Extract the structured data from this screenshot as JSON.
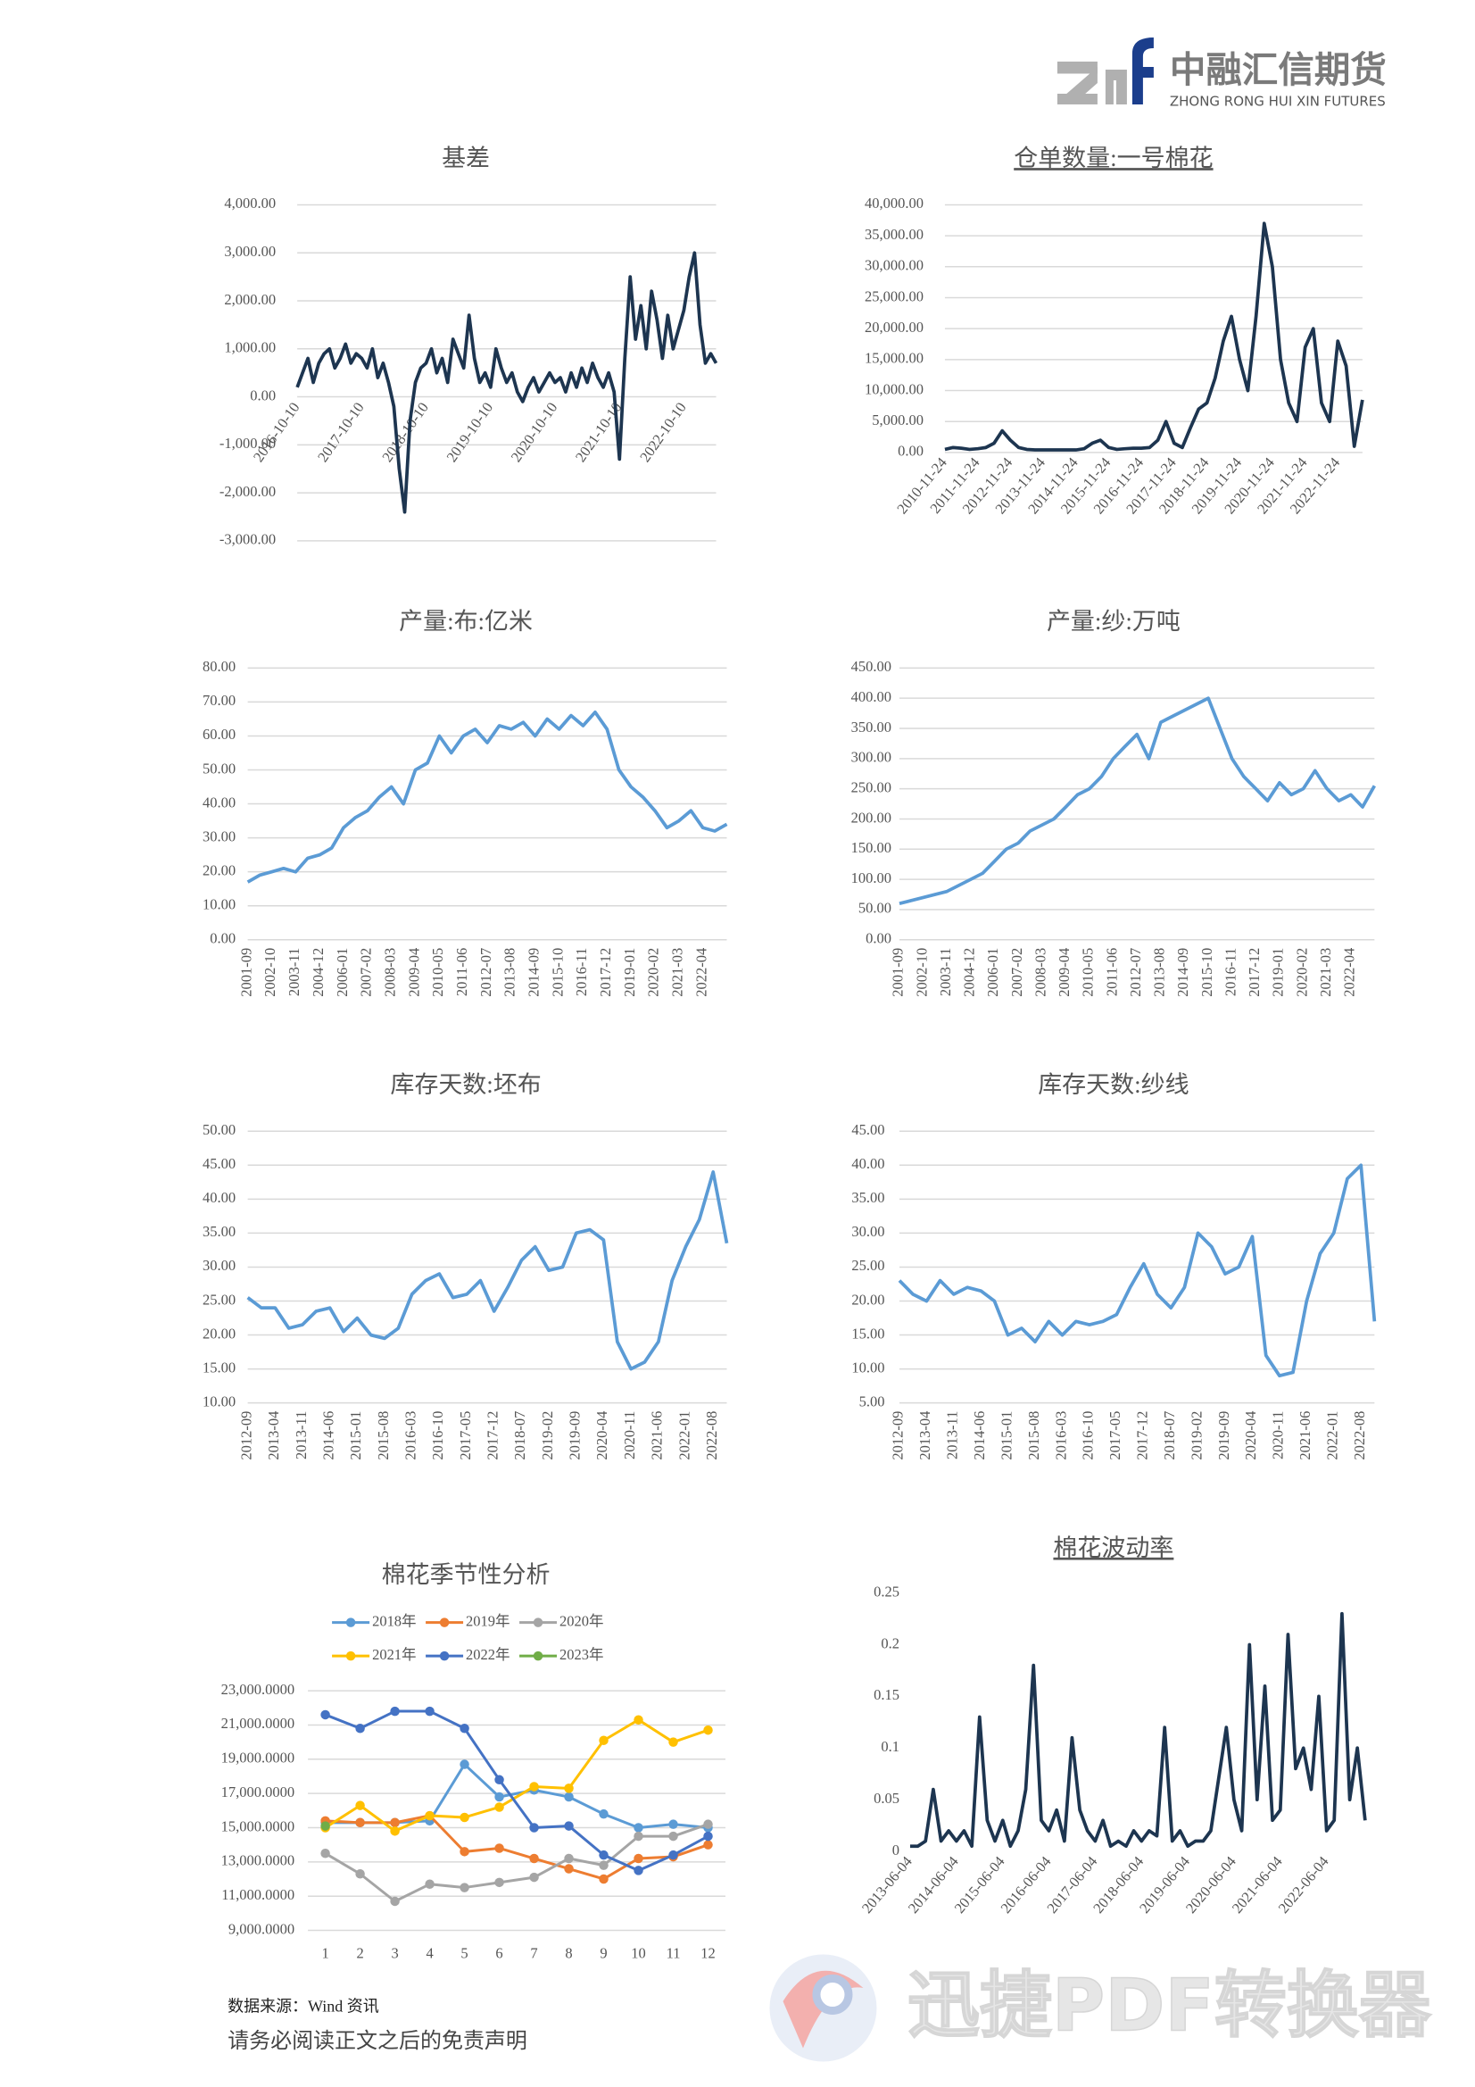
{
  "header": {
    "company": "中融汇信期货",
    "company_en": "ZHONG RONG HUI XIN FUTURES"
  },
  "footer": {
    "source": "数据来源：Wind 资讯",
    "disclaimer": "请务必阅读正文之后的免责声明",
    "watermark": "迅捷PDF转换器"
  },
  "chart_data": [
    {
      "type": "line",
      "title": "基差",
      "color": "#1d3550",
      "grid": true,
      "categories": [
        "2016-10-10",
        null,
        null,
        null,
        null,
        null,
        null,
        null,
        null,
        null,
        null,
        null,
        "2017-10-10",
        null,
        null,
        null,
        null,
        null,
        null,
        null,
        null,
        null,
        null,
        null,
        "2018-10-10",
        null,
        null,
        null,
        null,
        null,
        null,
        null,
        null,
        null,
        null,
        null,
        "2019-10-10",
        null,
        null,
        null,
        null,
        null,
        null,
        null,
        null,
        null,
        null,
        null,
        "2020-10-10",
        null,
        null,
        null,
        null,
        null,
        null,
        null,
        null,
        null,
        null,
        null,
        "2021-10-10",
        null,
        null,
        null,
        null,
        null,
        null,
        null,
        null,
        null,
        null,
        null,
        "2022-10-10",
        null,
        null,
        null,
        null,
        null,
        null
      ],
      "values": [
        200,
        500,
        800,
        300,
        700,
        900,
        1000,
        600,
        800,
        1100,
        700,
        900,
        800,
        600,
        1000,
        400,
        700,
        300,
        -200,
        -1500,
        -2400,
        -500,
        300,
        600,
        700,
        1000,
        500,
        800,
        300,
        1200,
        900,
        600,
        1700,
        800,
        300,
        500,
        200,
        1000,
        600,
        300,
        500,
        100,
        -100,
        200,
        400,
        100,
        300,
        500,
        300,
        400,
        100,
        500,
        200,
        600,
        300,
        700,
        400,
        200,
        500,
        100,
        -1300,
        800,
        2500,
        1200,
        1900,
        1000,
        2200,
        1600,
        800,
        1700,
        1000,
        1400,
        1800,
        2500,
        3000,
        1500,
        700,
        900,
        700
      ],
      "ylim": [
        -3000,
        4000
      ],
      "yticks": [
        {
          "value": -3000,
          "label": "-3,000.00"
        },
        {
          "value": -2000,
          "label": "-2,000.00"
        },
        {
          "value": -1000,
          "label": "-1,000.00"
        },
        {
          "value": 0,
          "label": "0.00"
        },
        {
          "value": 1000,
          "label": "1,000.00"
        },
        {
          "value": 2000,
          "label": "2,000.00"
        },
        {
          "value": 3000,
          "label": "3,000.00"
        },
        {
          "value": 4000,
          "label": "4,000.00"
        }
      ]
    },
    {
      "type": "line",
      "title": "仓单数量:一号棉花",
      "color": "#1d3550",
      "grid": true,
      "categories": [
        "2010-11-24",
        null,
        null,
        null,
        "2011-11-24",
        null,
        null,
        null,
        "2012-11-24",
        null,
        null,
        null,
        "2013-11-24",
        null,
        null,
        null,
        "2014-11-24",
        null,
        null,
        null,
        "2015-11-24",
        null,
        null,
        null,
        "2016-11-24",
        null,
        null,
        null,
        "2017-11-24",
        null,
        null,
        null,
        "2018-11-24",
        null,
        null,
        null,
        "2019-11-24",
        null,
        null,
        null,
        "2020-11-24",
        null,
        null,
        null,
        "2021-11-24",
        null,
        null,
        null,
        "2022-11-24",
        null,
        null,
        null
      ],
      "values": [
        500,
        800,
        700,
        500,
        600,
        800,
        1500,
        3500,
        2000,
        800,
        500,
        400,
        400,
        400,
        400,
        400,
        400,
        600,
        1500,
        2000,
        800,
        500,
        600,
        700,
        700,
        800,
        2000,
        5000,
        1500,
        800,
        4000,
        7000,
        8000,
        12000,
        18000,
        22000,
        15000,
        10000,
        22000,
        37000,
        30000,
        15000,
        8000,
        5000,
        17000,
        20000,
        8000,
        5000,
        18000,
        14000,
        1000,
        8500
      ],
      "ylim": [
        0,
        40000
      ],
      "yticks": [
        {
          "value": 0,
          "label": "0.00"
        },
        {
          "value": 5000,
          "label": "5,000.00"
        },
        {
          "value": 10000,
          "label": "10,000.00"
        },
        {
          "value": 15000,
          "label": "15,000.00"
        },
        {
          "value": 20000,
          "label": "20,000.00"
        },
        {
          "value": 25000,
          "label": "25,000.00"
        },
        {
          "value": 30000,
          "label": "30,000.00"
        },
        {
          "value": 35000,
          "label": "35,000.00"
        },
        {
          "value": 40000,
          "label": "40,000.00"
        }
      ]
    },
    {
      "type": "line",
      "title": "产量:布:亿米",
      "color": "#5b9bd5",
      "grid": true,
      "categories": [
        "2001-09",
        null,
        "2002-10",
        null,
        "2003-11",
        null,
        "2004-12",
        null,
        "2006-01",
        null,
        "2007-02",
        null,
        "2008-03",
        null,
        "2009-04",
        null,
        "2010-05",
        null,
        "2011-06",
        null,
        "2012-07",
        null,
        "2013-08",
        null,
        "2014-09",
        null,
        "2015-10",
        null,
        "2016-11",
        null,
        "2017-12",
        null,
        "2019-01",
        null,
        "2020-02",
        null,
        "2021-03",
        null,
        "2022-04",
        null,
        null
      ],
      "values": [
        17,
        19,
        20,
        21,
        20,
        24,
        25,
        27,
        33,
        36,
        38,
        42,
        45,
        40,
        50,
        52,
        60,
        55,
        60,
        62,
        58,
        63,
        62,
        64,
        60,
        65,
        62,
        66,
        63,
        67,
        62,
        50,
        45,
        42,
        38,
        33,
        35,
        38,
        33,
        32,
        34
      ],
      "ylim": [
        0,
        80
      ],
      "yticks": [
        {
          "value": 0,
          "label": "0.00"
        },
        {
          "value": 10,
          "label": "10.00"
        },
        {
          "value": 20,
          "label": "20.00"
        },
        {
          "value": 30,
          "label": "30.00"
        },
        {
          "value": 40,
          "label": "40.00"
        },
        {
          "value": 50,
          "label": "50.00"
        },
        {
          "value": 60,
          "label": "60.00"
        },
        {
          "value": 70,
          "label": "70.00"
        },
        {
          "value": 80,
          "label": "80.00"
        }
      ]
    },
    {
      "type": "line",
      "title": "产量:纱:万吨",
      "color": "#5b9bd5",
      "grid": true,
      "categories": [
        "2001-09",
        null,
        "2002-10",
        null,
        "2003-11",
        null,
        "2004-12",
        null,
        "2006-01",
        null,
        "2007-02",
        null,
        "2008-03",
        null,
        "2009-04",
        null,
        "2010-05",
        null,
        "2011-06",
        null,
        "2012-07",
        null,
        "2013-08",
        null,
        "2014-09",
        null,
        "2015-10",
        null,
        "2016-11",
        null,
        "2017-12",
        null,
        "2019-01",
        null,
        "2020-02",
        null,
        "2021-03",
        null,
        "2022-04",
        null,
        null
      ],
      "values": [
        60,
        65,
        70,
        75,
        80,
        90,
        100,
        110,
        130,
        150,
        160,
        180,
        190,
        200,
        220,
        240,
        250,
        270,
        300,
        320,
        340,
        300,
        360,
        370,
        380,
        390,
        400,
        350,
        300,
        270,
        250,
        230,
        260,
        240,
        250,
        280,
        250,
        230,
        240,
        220,
        255
      ],
      "ylim": [
        0,
        450
      ],
      "yticks": [
        {
          "value": 0,
          "label": "0.00"
        },
        {
          "value": 50,
          "label": "50.00"
        },
        {
          "value": 100,
          "label": "100.00"
        },
        {
          "value": 150,
          "label": "150.00"
        },
        {
          "value": 200,
          "label": "200.00"
        },
        {
          "value": 250,
          "label": "250.00"
        },
        {
          "value": 300,
          "label": "300.00"
        },
        {
          "value": 350,
          "label": "350.00"
        },
        {
          "value": 400,
          "label": "400.00"
        },
        {
          "value": 450,
          "label": "450.00"
        }
      ]
    },
    {
      "type": "line",
      "title": "库存天数:坯布",
      "color": "#5b9bd5",
      "grid": true,
      "categories": [
        "2012-09",
        null,
        "2013-04",
        null,
        "2013-11",
        null,
        "2014-06",
        null,
        "2015-01",
        null,
        "2015-08",
        null,
        "2016-03",
        null,
        "2016-10",
        null,
        "2017-05",
        null,
        "2017-12",
        null,
        "2018-07",
        null,
        "2019-02",
        null,
        "2019-09",
        null,
        "2020-04",
        null,
        "2020-11",
        null,
        "2021-06",
        null,
        "2022-01",
        null,
        "2022-08",
        null
      ],
      "values": [
        25.5,
        24,
        24,
        21,
        21.5,
        23.5,
        24,
        20.5,
        22.5,
        20,
        19.5,
        21,
        26,
        28,
        29,
        25.5,
        26,
        28,
        23.5,
        27,
        31,
        33,
        29.5,
        30,
        35,
        35.5,
        34,
        19,
        15,
        16,
        19,
        28,
        33,
        37,
        44,
        33.5
      ],
      "ylim": [
        10,
        50
      ],
      "yticks": [
        {
          "value": 10,
          "label": "10.00"
        },
        {
          "value": 15,
          "label": "15.00"
        },
        {
          "value": 20,
          "label": "20.00"
        },
        {
          "value": 25,
          "label": "25.00"
        },
        {
          "value": 30,
          "label": "30.00"
        },
        {
          "value": 35,
          "label": "35.00"
        },
        {
          "value": 40,
          "label": "40.00"
        },
        {
          "value": 45,
          "label": "45.00"
        },
        {
          "value": 50,
          "label": "50.00"
        }
      ]
    },
    {
      "type": "line",
      "title": "库存天数:纱线",
      "color": "#5b9bd5",
      "grid": true,
      "categories": [
        "2012-09",
        null,
        "2013-04",
        null,
        "2013-11",
        null,
        "2014-06",
        null,
        "2015-01",
        null,
        "2015-08",
        null,
        "2016-03",
        null,
        "2016-10",
        null,
        "2017-05",
        null,
        "2017-12",
        null,
        "2018-07",
        null,
        "2019-02",
        null,
        "2019-09",
        null,
        "2020-04",
        null,
        "2020-11",
        null,
        "2021-06",
        null,
        "2022-01",
        null,
        "2022-08",
        null
      ],
      "values": [
        23,
        21,
        20,
        23,
        21,
        22,
        21.5,
        20,
        15,
        16,
        14,
        17,
        15,
        17,
        16.5,
        17,
        18,
        22,
        25.5,
        21,
        19,
        22,
        30,
        28,
        24,
        25,
        29.5,
        12,
        9,
        9.5,
        20,
        27,
        30,
        38,
        40,
        17
      ],
      "ylim": [
        5,
        45
      ],
      "yticks": [
        {
          "value": 5,
          "label": "5.00"
        },
        {
          "value": 10,
          "label": "10.00"
        },
        {
          "value": 15,
          "label": "15.00"
        },
        {
          "value": 20,
          "label": "20.00"
        },
        {
          "value": 25,
          "label": "25.00"
        },
        {
          "value": 30,
          "label": "30.00"
        },
        {
          "value": 35,
          "label": "35.00"
        },
        {
          "value": 40,
          "label": "40.00"
        },
        {
          "value": 45,
          "label": "45.00"
        }
      ]
    },
    {
      "type": "line",
      "title": "棉花季节性分析",
      "grid": true,
      "legend": "top",
      "markers": true,
      "categories": [
        "1",
        "2",
        "3",
        "4",
        "5",
        "6",
        "7",
        "8",
        "9",
        "10",
        "11",
        "12"
      ],
      "series": [
        {
          "name": "2018年",
          "color": "#5b9bd5",
          "values": [
            15300,
            15300,
            15300,
            15400,
            18700,
            16800,
            17200,
            16800,
            15800,
            15000,
            15200,
            15000
          ]
        },
        {
          "name": "2019年",
          "color": "#ed7d31",
          "values": [
            15400,
            15300,
            15300,
            15700,
            13600,
            13800,
            13200,
            12600,
            12000,
            13200,
            13300,
            14000
          ]
        },
        {
          "name": "2020年",
          "color": "#a5a5a5",
          "values": [
            13500,
            12300,
            10700,
            11700,
            11500,
            11800,
            12100,
            13200,
            12800,
            14500,
            14500,
            15200
          ]
        },
        {
          "name": "2021年",
          "color": "#ffc000",
          "values": [
            15000,
            16300,
            14800,
            15700,
            15600,
            16200,
            17400,
            17300,
            20100,
            21300,
            20000,
            20700
          ]
        },
        {
          "name": "2022年",
          "color": "#4472c4",
          "values": [
            21600,
            20800,
            21800,
            21800,
            20800,
            17800,
            15000,
            15100,
            13400,
            12500,
            13400,
            14500
          ]
        },
        {
          "name": "2023年",
          "color": "#70ad47",
          "values": [
            15100,
            null,
            null,
            null,
            null,
            null,
            null,
            null,
            null,
            null,
            null,
            null
          ]
        }
      ],
      "ylim": [
        9000,
        23000
      ],
      "yticks": [
        {
          "value": 9000,
          "label": "9,000.0000"
        },
        {
          "value": 11000,
          "label": "11,000.0000"
        },
        {
          "value": 13000,
          "label": "13,000.0000"
        },
        {
          "value": 15000,
          "label": "15,000.0000"
        },
        {
          "value": 17000,
          "label": "17,000.0000"
        },
        {
          "value": 19000,
          "label": "19,000.0000"
        },
        {
          "value": 21000,
          "label": "21,000.0000"
        },
        {
          "value": 23000,
          "label": "23,000.0000"
        }
      ]
    },
    {
      "type": "line",
      "title": "棉花波动率",
      "color": "#1d3550",
      "grid": false,
      "categories": [
        "2013-06-04",
        null,
        null,
        null,
        null,
        null,
        "2014-06-04",
        null,
        null,
        null,
        null,
        null,
        "2015-06-04",
        null,
        null,
        null,
        null,
        null,
        "2016-06-04",
        null,
        null,
        null,
        null,
        null,
        "2017-06-04",
        null,
        null,
        null,
        null,
        null,
        "2018-06-04",
        null,
        null,
        null,
        null,
        null,
        "2019-06-04",
        null,
        null,
        null,
        null,
        null,
        "2020-06-04",
        null,
        null,
        null,
        null,
        null,
        "2021-06-04",
        null,
        null,
        null,
        null,
        null,
        "2022-06-04",
        null,
        null,
        null,
        null,
        null
      ],
      "values": [
        0.005,
        0.005,
        0.01,
        0.06,
        0.01,
        0.02,
        0.01,
        0.02,
        0.005,
        0.13,
        0.03,
        0.01,
        0.03,
        0.005,
        0.02,
        0.06,
        0.18,
        0.03,
        0.02,
        0.04,
        0.01,
        0.11,
        0.04,
        0.02,
        0.01,
        0.03,
        0.005,
        0.01,
        0.005,
        0.02,
        0.01,
        0.02,
        0.015,
        0.12,
        0.01,
        0.02,
        0.005,
        0.01,
        0.01,
        0.02,
        0.07,
        0.12,
        0.05,
        0.02,
        0.2,
        0.05,
        0.16,
        0.03,
        0.04,
        0.21,
        0.08,
        0.1,
        0.06,
        0.15,
        0.02,
        0.03,
        0.23,
        0.05,
        0.1,
        0.03
      ],
      "ylim": [
        0,
        0.25
      ],
      "yticks": [
        0,
        0.05,
        0.1,
        0.15,
        0.2,
        0.25
      ]
    }
  ]
}
